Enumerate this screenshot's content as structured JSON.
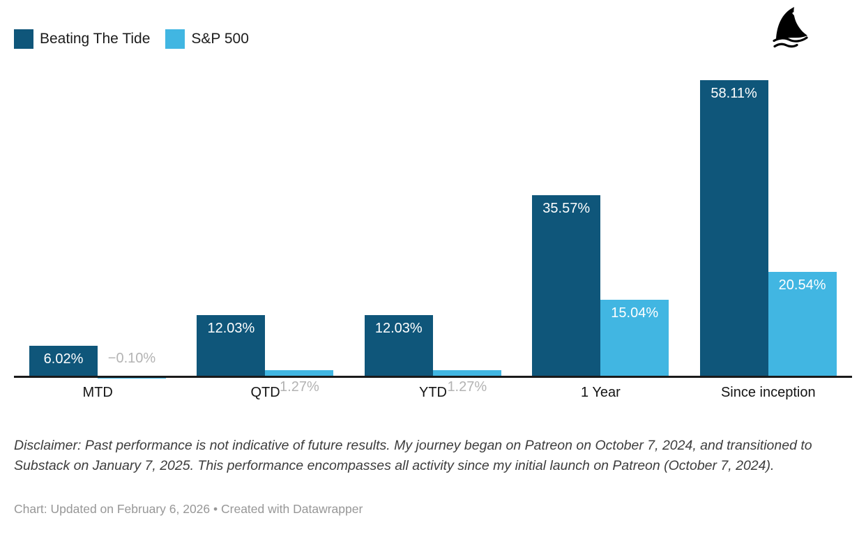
{
  "chart_data": {
    "type": "bar",
    "categories": [
      "MTD",
      "QTD",
      "YTD",
      "1 Year",
      "Since inception"
    ],
    "series": [
      {
        "name": "Beating The Tide",
        "color": "#0f567a",
        "values": [
          6.02,
          12.03,
          12.03,
          35.57,
          58.11
        ],
        "labels": [
          "6.02%",
          "12.03%",
          "12.03%",
          "35.57%",
          "58.11%"
        ]
      },
      {
        "name": "S&P 500",
        "color": "#41b6e2",
        "values": [
          -0.1,
          1.27,
          1.27,
          15.04,
          20.54
        ],
        "labels": [
          "−0.10%",
          "1.27%",
          "1.27%",
          "15.04%",
          "20.54%"
        ]
      }
    ],
    "title": "",
    "xlabel": "",
    "ylabel": "",
    "ylim": [
      0,
      60
    ],
    "grid": false,
    "legend_position": "top-left",
    "value_format": "percent"
  },
  "logo": {
    "name": "shark-fin"
  },
  "notes": {
    "disclaimer": "Disclaimer: Past performance is not indicative of future results. My journey began on Patreon on October 7, 2024, and transitioned to Substack on January 7, 2025. This performance encompasses all activity since my initial launch on Patreon (October 7, 2024).",
    "credit": "Chart: Updated on February 6, 2026 • Created with Datawrapper"
  }
}
